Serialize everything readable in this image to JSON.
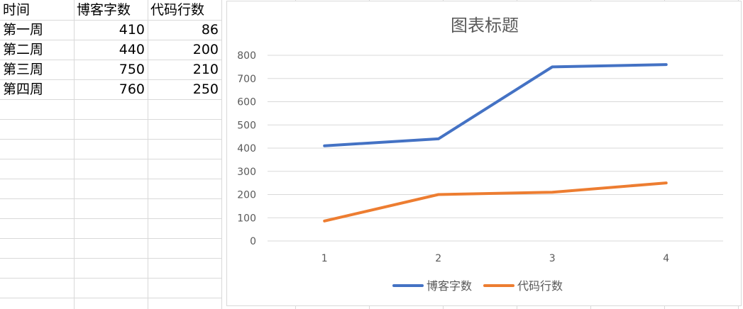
{
  "sheet": {
    "headers": [
      "时间",
      "博客字数",
      "代码行数"
    ],
    "rows": [
      [
        "第一周",
        "410",
        "86"
      ],
      [
        "第二周",
        "440",
        "200"
      ],
      [
        "第三周",
        "750",
        "210"
      ],
      [
        "第四周",
        "760",
        "250"
      ]
    ]
  },
  "chart_data": {
    "type": "line",
    "title": "图表标题",
    "x": [
      "1",
      "2",
      "3",
      "4"
    ],
    "series": [
      {
        "name": "博客字数",
        "values": [
          410,
          440,
          750,
          760
        ],
        "color": "#4472C4"
      },
      {
        "name": "代码行数",
        "values": [
          86,
          200,
          210,
          250
        ],
        "color": "#ED7D31"
      }
    ],
    "ylim": [
      0,
      800
    ],
    "yticks": [
      0,
      100,
      200,
      300,
      400,
      500,
      600,
      700,
      800
    ],
    "grid": true,
    "legend": "bottom"
  }
}
